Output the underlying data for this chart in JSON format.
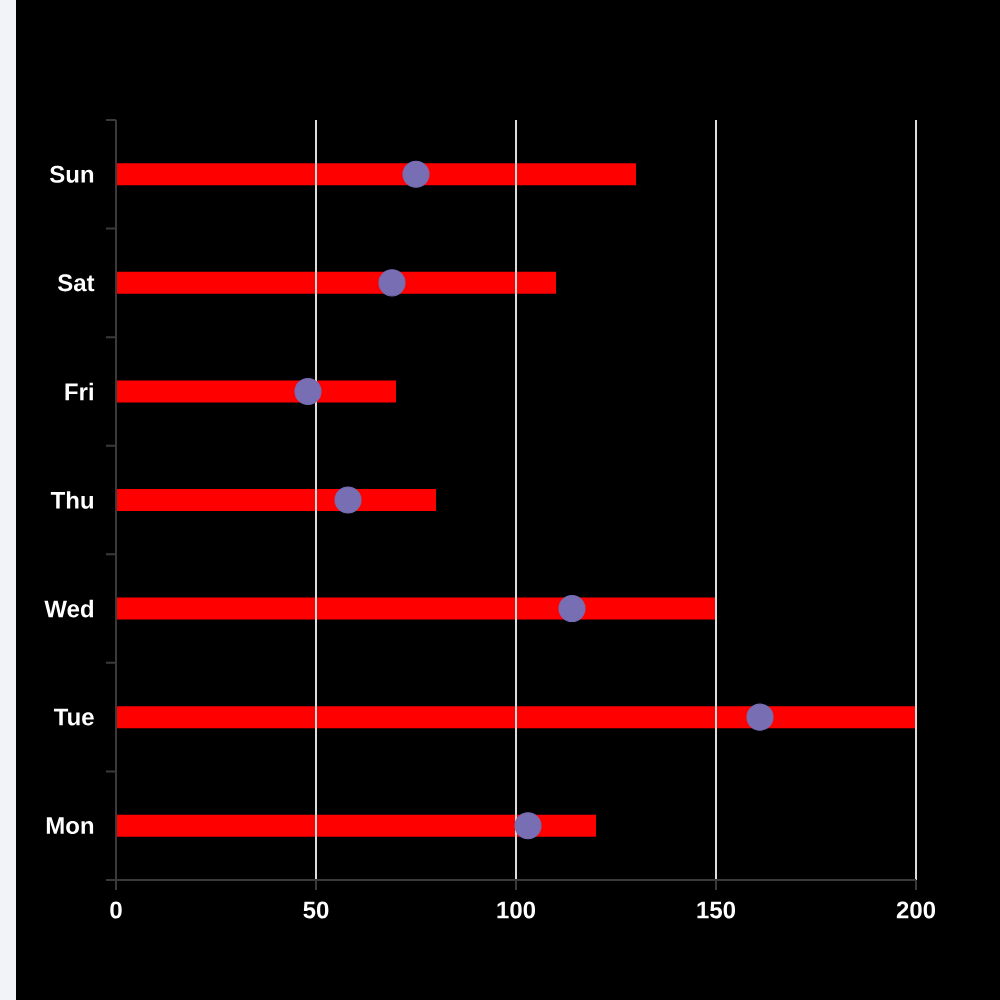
{
  "chart_data": {
    "type": "bar",
    "orientation": "horizontal",
    "categories": [
      "Sun",
      "Sat",
      "Fri",
      "Thu",
      "Wed",
      "Tue",
      "Mon"
    ],
    "series": [
      {
        "color": "#ff0000",
        "values": [
          130,
          110,
          70,
          80,
          150,
          200,
          120
        ]
      },
      {
        "type": "scatter",
        "x": [
          "Sun",
          "Sat",
          "Fri",
          "Thu",
          "Wed",
          "Tue",
          "Mon"
        ],
        "color": "#776eb4",
        "marker": "circle",
        "values": [
          75,
          69,
          48,
          58,
          114,
          161,
          103
        ]
      }
    ],
    "xlim": [
      0,
      200
    ],
    "xticks": [
      0,
      50,
      100,
      150,
      200
    ],
    "grid": "x"
  }
}
